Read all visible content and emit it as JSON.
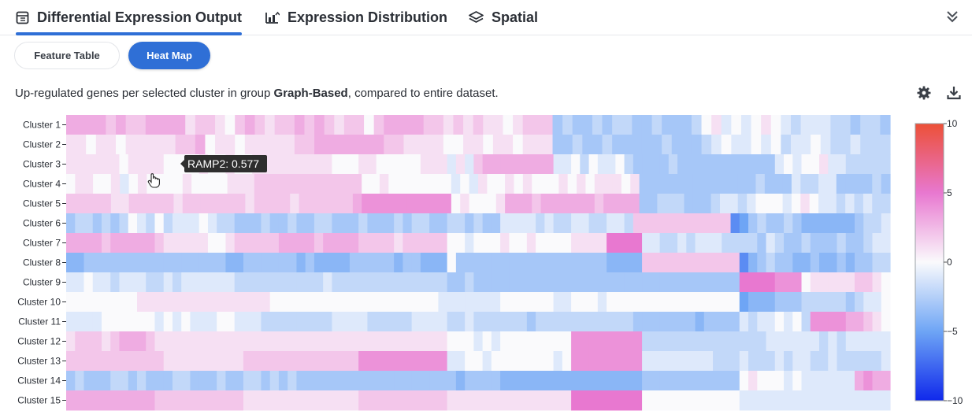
{
  "tabs": [
    {
      "label": "Differential Expression Output",
      "icon": "table-icon",
      "active": true
    },
    {
      "label": "Expression Distribution",
      "icon": "chart-upload-icon",
      "active": false
    },
    {
      "label": "Spatial",
      "icon": "layers-icon",
      "active": false
    }
  ],
  "subtabs": [
    {
      "label": "Feature Table",
      "active": false
    },
    {
      "label": "Heat Map",
      "active": true
    }
  ],
  "description": {
    "prefix": "Up-regulated genes per selected cluster in group ",
    "group": "Graph-Based",
    "suffix": ", compared to entire dataset."
  },
  "tooltip": {
    "text": "RAMP2: 0.577"
  },
  "chart_data": {
    "type": "heatmap",
    "rows": [
      "Cluster 1",
      "Cluster 2",
      "Cluster 3",
      "Cluster 4",
      "Cluster 5",
      "Cluster 6",
      "Cluster 7",
      "Cluster 8",
      "Cluster 9",
      "Cluster 10",
      "Cluster 11",
      "Cluster 12",
      "Cluster 13",
      "Cluster 14",
      "Cluster 15"
    ],
    "colorbar": {
      "min": -10,
      "max": 10,
      "ticks": [
        10,
        5,
        0,
        -5,
        -10
      ]
    },
    "values": [
      [
        3,
        3,
        3,
        3,
        2,
        3,
        2,
        2,
        3,
        3,
        3,
        3,
        1,
        2,
        2,
        1,
        0,
        2,
        3,
        2,
        1,
        2,
        2,
        3,
        2,
        3,
        2,
        1,
        2,
        2,
        0,
        2,
        3,
        3,
        3,
        3,
        2,
        2,
        1,
        2,
        1,
        2,
        1,
        1,
        0,
        1,
        2,
        2,
        2,
        -3,
        -2,
        -3,
        -3,
        -2,
        -3,
        -2,
        -2,
        -3,
        -3,
        -2,
        -3,
        -3,
        -3,
        -2,
        0,
        1,
        -1,
        0,
        -1,
        0,
        1,
        0,
        -1,
        -2,
        -1,
        -1,
        -1,
        -2,
        -2,
        -3,
        -2,
        -2,
        -3
      ],
      [
        1,
        1,
        0,
        1,
        1,
        0,
        1,
        1,
        1,
        1,
        1,
        2,
        2,
        3,
        0,
        1,
        1,
        0,
        1,
        1,
        1,
        1,
        1,
        2,
        2,
        3,
        3,
        3,
        3,
        3,
        3,
        3,
        2,
        2,
        1,
        1,
        1,
        1,
        0,
        0,
        1,
        1,
        0,
        1,
        1,
        0,
        1,
        1,
        1,
        -3,
        -3,
        -2,
        -3,
        -3,
        -2,
        -3,
        -3,
        -3,
        -3,
        -3,
        -2,
        -3,
        -3,
        -3,
        -2,
        -1,
        0,
        -1,
        -1,
        0,
        -1,
        0,
        -2,
        -1,
        -1,
        0,
        -1,
        -2,
        -2,
        -1,
        -2,
        -2,
        -2
      ],
      [
        1,
        1,
        1,
        1,
        1,
        1,
        0,
        1,
        1,
        1,
        1,
        0,
        0,
        0,
        0,
        1,
        0,
        0,
        1,
        0,
        0,
        1,
        1,
        1,
        1,
        1,
        1,
        1,
        1,
        1,
        0,
        0,
        0,
        1,
        1,
        0,
        0,
        0,
        0,
        0,
        1,
        1,
        1,
        -1,
        1,
        -1,
        2,
        3,
        3,
        3,
        3,
        3,
        3,
        3,
        3,
        -1,
        -1,
        0,
        -2,
        0,
        -1,
        -1,
        0,
        -2,
        -3,
        -3,
        -3,
        -3,
        -2,
        -3,
        -3,
        -3,
        -3,
        -3,
        -3,
        -3,
        -3,
        -3,
        -3,
        -3,
        -1,
        0,
        -1,
        0,
        0,
        1,
        -1,
        -1,
        -2,
        -2,
        -2,
        -2,
        -2
      ],
      [
        0,
        1,
        1,
        0,
        0,
        1,
        -1,
        0,
        1,
        0,
        0,
        0,
        0,
        1,
        0,
        0,
        0,
        0,
        1,
        1,
        1,
        2,
        2,
        2,
        2,
        2,
        2,
        2,
        2,
        2,
        2,
        2,
        2,
        0,
        0,
        1,
        0,
        0,
        0,
        0,
        0,
        0,
        0,
        -1,
        0,
        -1,
        1,
        0,
        0,
        1,
        0,
        1,
        0,
        0,
        0,
        1,
        0,
        1,
        0,
        1,
        1,
        1,
        0,
        1,
        -3,
        -3,
        -3,
        -3,
        -3,
        -3,
        -3,
        -3,
        -3,
        -3,
        -3,
        -3,
        -3,
        -2,
        -3,
        -3,
        -3,
        -1,
        -2,
        -2,
        -1,
        -1,
        -3,
        -3,
        -3,
        -3,
        -2,
        -3
      ],
      [
        2,
        2,
        2,
        2,
        2,
        1,
        1,
        2,
        2,
        2,
        2,
        2,
        1,
        2,
        2,
        2,
        2,
        2,
        2,
        2,
        1,
        2,
        2,
        2,
        2,
        1,
        2,
        2,
        2,
        2,
        2,
        2,
        3,
        4,
        4,
        4,
        4,
        4,
        4,
        4,
        4,
        4,
        4,
        0,
        1,
        0,
        0,
        0,
        1,
        3,
        3,
        3,
        2,
        3,
        3,
        3,
        3,
        3,
        3,
        2,
        3,
        3,
        3,
        3,
        -3,
        -3,
        -2,
        -2,
        -2,
        -3,
        -3,
        -3,
        -2,
        -1,
        -1,
        -2,
        -1,
        0,
        0,
        0,
        -1,
        0,
        1,
        0,
        -1,
        -1,
        -2,
        -1,
        -2,
        -1,
        -2,
        -2
      ],
      [
        -3,
        -2,
        -2,
        -3,
        -2,
        -3,
        -2,
        0,
        -1,
        -2,
        0,
        -2,
        -1,
        -1,
        -1,
        0,
        -1,
        -2,
        -2,
        -3,
        -3,
        -3,
        -2,
        -3,
        -3,
        -2,
        -3,
        -3,
        -2,
        -2,
        -3,
        -3,
        -3,
        -2,
        -3,
        -3,
        -3,
        -2,
        -3,
        -2,
        -2,
        -3,
        -3,
        -2,
        -2,
        -3,
        -2,
        -3,
        -3,
        -1,
        -1,
        -1,
        -1,
        -2,
        -1,
        -2,
        -2,
        -1,
        -1,
        -2,
        -2,
        -1,
        -1,
        -2,
        2,
        2,
        2,
        2,
        2,
        2,
        2,
        2,
        2,
        2,
        2,
        -6,
        -5,
        -3,
        -2,
        -3,
        -3,
        -2,
        -3,
        -4,
        -4,
        -4,
        -4,
        -4,
        -4,
        -3,
        -2,
        -2,
        -1
      ],
      [
        3,
        3,
        3,
        3,
        2,
        3,
        3,
        3,
        3,
        3,
        2,
        1,
        1,
        1,
        1,
        1,
        0,
        0,
        1,
        2,
        2,
        2,
        2,
        2,
        3,
        3,
        3,
        3,
        2,
        3,
        3,
        3,
        3,
        2,
        2,
        2,
        2,
        1,
        2,
        2,
        2,
        2,
        2,
        0,
        0,
        -1,
        0,
        0,
        0,
        1,
        0,
        0,
        1,
        0,
        0,
        0,
        0,
        1,
        1,
        1,
        1,
        5,
        5,
        5,
        5,
        -1,
        -1,
        -2,
        -2,
        -1,
        -2,
        -1,
        -1,
        -1,
        -2,
        -2,
        -2,
        -2,
        -3,
        -1,
        -2,
        -3,
        -3,
        -2,
        -3,
        -3,
        -3,
        -2,
        -3,
        -3,
        -2,
        -1,
        -1
      ],
      [
        -4,
        -4,
        -3,
        -3,
        -3,
        -3,
        -3,
        -3,
        -3,
        -3,
        -3,
        -3,
        -3,
        -3,
        -3,
        -3,
        -3,
        -3,
        -4,
        -4,
        -3,
        -3,
        -3,
        -3,
        -3,
        -3,
        -4,
        -3,
        -4,
        -4,
        -4,
        -4,
        -3,
        -3,
        -3,
        -3,
        -3,
        -4,
        -3,
        -3,
        -4,
        -4,
        -4,
        0,
        -3,
        -3,
        -3,
        -3,
        -3,
        -3,
        -3,
        -3,
        -3,
        -3,
        -3,
        -3,
        -3,
        -3,
        -3,
        -3,
        -3,
        -4,
        -4,
        -4,
        -4,
        2,
        2,
        2,
        2,
        2,
        2,
        2,
        2,
        2,
        2,
        2,
        -6,
        -4,
        -3,
        -2,
        -3,
        -3,
        -4,
        -4,
        -3,
        -4,
        -4,
        -3,
        -4,
        -3,
        -3,
        -2,
        -2
      ],
      [
        -1,
        -1,
        0,
        -1,
        -1,
        -2,
        -1,
        -1,
        -1,
        -2,
        -2,
        -1,
        -2,
        -1,
        -1,
        -1,
        -1,
        -1,
        -1,
        -2,
        -2,
        -2,
        -2,
        -2,
        -2,
        -2,
        -2,
        -2,
        -2,
        -1,
        -2,
        -2,
        -2,
        -2,
        -2,
        -2,
        -2,
        -2,
        -2,
        -2,
        -2,
        -2,
        -2,
        -3,
        -3,
        -2,
        -3,
        -3,
        -3,
        -3,
        -3,
        -3,
        -3,
        -3,
        -3,
        -3,
        -3,
        -3,
        -3,
        -3,
        -3,
        -3,
        -3,
        -3,
        -3,
        -3,
        -3,
        -3,
        -3,
        -3,
        -3,
        -3,
        -3,
        -3,
        -3,
        -3,
        5,
        5,
        5,
        5,
        4,
        4,
        4,
        0,
        1,
        1,
        1,
        1,
        1,
        2,
        2,
        1,
        0
      ],
      [
        0,
        0,
        0,
        0,
        0,
        0,
        0,
        0,
        1,
        1,
        1,
        1,
        1,
        1,
        1,
        1,
        1,
        1,
        1,
        1,
        1,
        1,
        1,
        0,
        0,
        0,
        0,
        0,
        0,
        0,
        0,
        0,
        0,
        0,
        0,
        0,
        0,
        0,
        0,
        0,
        0,
        0,
        -1,
        -1,
        -1,
        -1,
        -1,
        -1,
        -1,
        0,
        0,
        0,
        0,
        0,
        0,
        -1,
        -1,
        0,
        0,
        0,
        -1,
        0,
        0,
        0,
        0,
        0,
        0,
        0,
        0,
        0,
        0,
        0,
        0,
        0,
        0,
        0,
        -5,
        -4,
        -4,
        -4,
        -3,
        -3,
        -3,
        -2,
        -2,
        -2,
        -2,
        -2,
        -3,
        -2,
        -1,
        -1,
        0
      ],
      [
        -1,
        -1,
        -1,
        -1,
        0,
        0,
        0,
        0,
        0,
        0,
        -1,
        0,
        -1,
        0,
        -1,
        -1,
        -1,
        0,
        0,
        -1,
        -1,
        -1,
        -2,
        -2,
        -2,
        -2,
        -2,
        -2,
        -2,
        -2,
        -1,
        -1,
        -1,
        -1,
        -2,
        -2,
        -2,
        -2,
        -2,
        -1,
        -1,
        -1,
        -1,
        -2,
        -2,
        -1,
        -2,
        -2,
        -2,
        -2,
        -2,
        -2,
        -3,
        -2,
        -2,
        -2,
        -2,
        -2,
        -2,
        -2,
        -2,
        -2,
        -2,
        -2,
        -3,
        -3,
        -3,
        -3,
        -3,
        -3,
        -3,
        -4,
        -3,
        -3,
        -3,
        -3,
        -1,
        -2,
        -1,
        -1,
        0,
        -1,
        0,
        -2,
        4,
        4,
        4,
        4,
        3,
        3,
        2,
        1,
        0
      ],
      [
        1,
        2,
        2,
        2,
        1,
        2,
        3,
        3,
        3,
        2,
        1,
        1,
        1,
        1,
        1,
        1,
        1,
        1,
        1,
        1,
        1,
        1,
        1,
        1,
        1,
        1,
        1,
        1,
        1,
        1,
        1,
        1,
        1,
        1,
        1,
        1,
        1,
        1,
        1,
        1,
        1,
        1,
        1,
        0,
        0,
        0,
        -1,
        0,
        -1,
        0,
        0,
        0,
        0,
        0,
        0,
        0,
        0,
        4,
        4,
        4,
        4,
        4,
        4,
        4,
        4,
        -2,
        -2,
        -2,
        -2,
        -2,
        -2,
        -2,
        -2,
        -2,
        -2,
        -2,
        -2,
        -2,
        -2,
        -1,
        -1,
        -1,
        -1,
        -1,
        -1,
        -2,
        -1,
        -2,
        -1,
        -1,
        -1,
        -1,
        -1
      ],
      [
        2,
        2,
        2,
        2,
        2,
        2,
        2,
        2,
        2,
        2,
        2,
        1,
        1,
        1,
        1,
        1,
        1,
        1,
        1,
        1,
        2,
        2,
        2,
        2,
        2,
        2,
        2,
        2,
        2,
        2,
        2,
        2,
        2,
        4,
        4,
        4,
        4,
        4,
        4,
        4,
        4,
        4,
        4,
        -1,
        -1,
        0,
        0,
        -1,
        0,
        0,
        0,
        0,
        0,
        0,
        0,
        -1,
        0,
        4,
        4,
        4,
        4,
        4,
        4,
        4,
        4,
        -1,
        -1,
        -1,
        -1,
        -1,
        -1,
        -1,
        -1,
        -2,
        -2,
        -2,
        -1,
        -2,
        -2,
        -2,
        -1,
        -2,
        -1,
        -1,
        -2,
        -2,
        -1,
        -2,
        -2,
        -2,
        -2,
        -2,
        -1
      ],
      [
        -3,
        -2,
        -3,
        -3,
        -3,
        -2,
        -2,
        -3,
        -2,
        -3,
        -3,
        -3,
        -2,
        -2,
        -3,
        -3,
        -3,
        -2,
        -3,
        -3,
        -2,
        -2,
        -3,
        -2,
        -3,
        -2,
        -3,
        -3,
        -3,
        -3,
        -3,
        -3,
        -3,
        -3,
        -3,
        -3,
        -3,
        -3,
        -3,
        -3,
        -3,
        -3,
        -3,
        -3,
        -4,
        -3,
        -3,
        -3,
        -3,
        -4,
        -4,
        -4,
        -4,
        -4,
        -4,
        -4,
        -4,
        -4,
        -4,
        -4,
        -4,
        -4,
        -4,
        -4,
        -4,
        -3,
        -3,
        -3,
        -3,
        -3,
        -3,
        -3,
        -3,
        -3,
        -3,
        -3,
        0,
        1,
        0,
        0,
        0,
        -1,
        0,
        -1,
        -1,
        -1,
        -1,
        -1,
        -1,
        3,
        4,
        3,
        3
      ],
      [
        3,
        3,
        3,
        3,
        3,
        3,
        3,
        3,
        3,
        3,
        2,
        2,
        2,
        2,
        2,
        2,
        2,
        2,
        2,
        2,
        1,
        1,
        1,
        1,
        1,
        1,
        1,
        1,
        1,
        1,
        1,
        1,
        1,
        2,
        2,
        2,
        2,
        2,
        2,
        2,
        2,
        2,
        2,
        1,
        1,
        1,
        1,
        1,
        1,
        1,
        1,
        1,
        1,
        1,
        1,
        1,
        1,
        5,
        5,
        5,
        5,
        5,
        5,
        5,
        5,
        0,
        0,
        0,
        0,
        0,
        0,
        0,
        0,
        0,
        0,
        0,
        -1,
        -1,
        -1,
        -1,
        -1,
        -1,
        -1,
        -1,
        -1,
        -1,
        -1,
        -1,
        -1,
        -1,
        -1,
        -1,
        -1
      ]
    ]
  }
}
